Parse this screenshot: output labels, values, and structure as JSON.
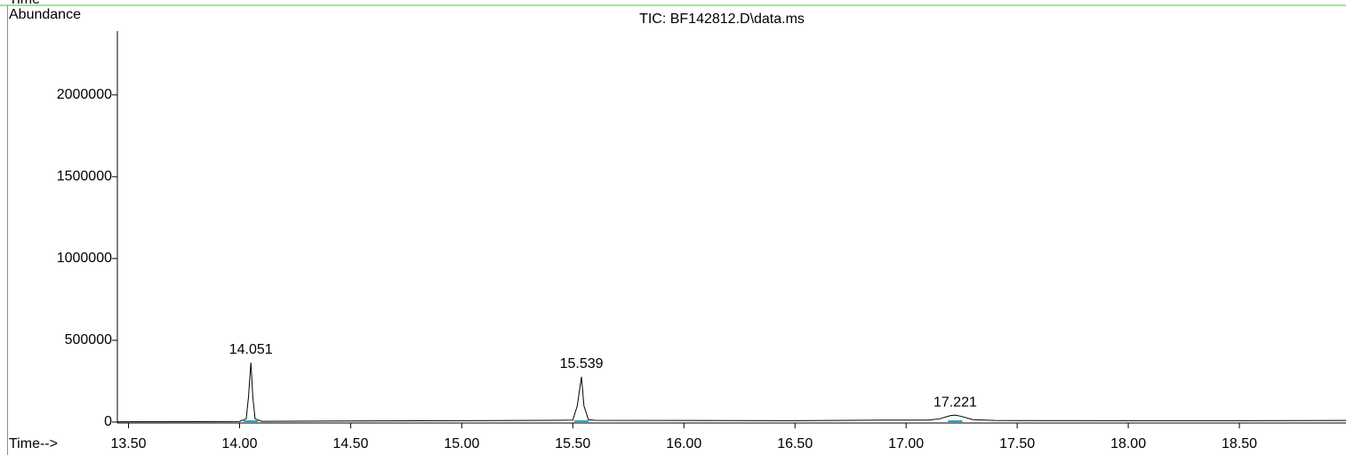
{
  "window_label": "Time",
  "chart_data": {
    "type": "line",
    "title": "TIC: BF142812.D\\data.ms",
    "y_label": "Abundance",
    "x_label": "Time-->",
    "x": [
      13.45,
      13.8,
      14.0,
      14.03,
      14.04,
      14.051,
      14.06,
      14.07,
      14.1,
      14.5,
      15.0,
      15.4,
      15.5,
      15.52,
      15.539,
      15.55,
      15.57,
      15.6,
      16.0,
      16.5,
      16.9,
      17.1,
      17.15,
      17.2,
      17.221,
      17.25,
      17.3,
      17.4,
      18.0,
      18.5,
      18.98
    ],
    "series": [
      {
        "color": "#000000",
        "values": [
          2000,
          2500,
          4000,
          20000,
          150000,
          364000,
          150000,
          20000,
          5000,
          7000,
          9000,
          11000,
          12000,
          100000,
          277000,
          100000,
          15000,
          11000,
          10000,
          9000,
          12000,
          12000,
          20000,
          40000,
          43000,
          35000,
          15000,
          10000,
          9000,
          9000,
          10000
        ]
      }
    ],
    "peak_labels": [
      14.051,
      15.539,
      17.221
    ],
    "xlim": [
      13.45,
      18.98
    ],
    "ylim": [
      0,
      2390000
    ],
    "xticks": [
      {
        "value": 13.5,
        "label": "13.50"
      },
      {
        "value": 14.0,
        "label": "14.00"
      },
      {
        "value": 14.5,
        "label": "14.50"
      },
      {
        "value": 15.0,
        "label": "15.00"
      },
      {
        "value": 15.5,
        "label": "15.50"
      },
      {
        "value": 16.0,
        "label": "16.00"
      },
      {
        "value": 16.5,
        "label": "16.50"
      },
      {
        "value": 17.0,
        "label": "17.00"
      },
      {
        "value": 17.5,
        "label": "17.50"
      },
      {
        "value": 18.0,
        "label": "18.00"
      },
      {
        "value": 18.5,
        "label": "18.50"
      }
    ],
    "yticks": [
      0,
      500000,
      1000000,
      1500000,
      2000000
    ]
  }
}
